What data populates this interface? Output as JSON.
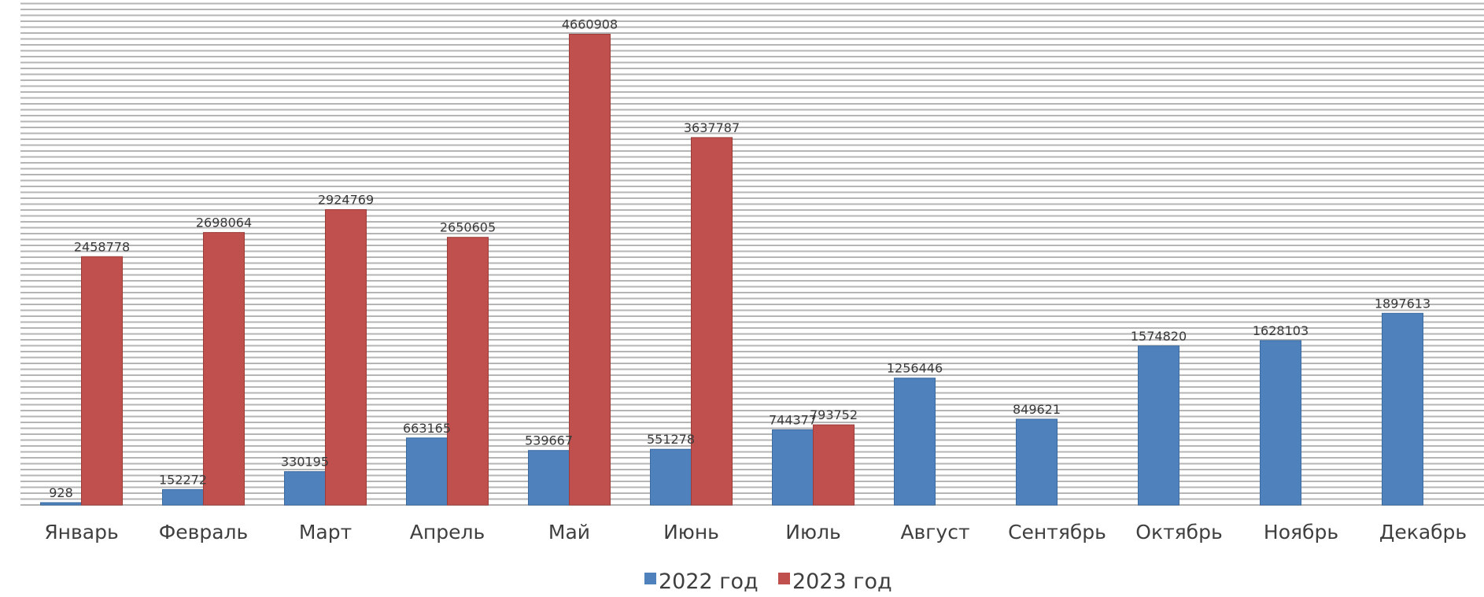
{
  "chart_data": {
    "type": "bar",
    "categories": [
      "Январь",
      "Февраль",
      "Март",
      "Апрель",
      "Май",
      "Июнь",
      "Июль",
      "Август",
      "Сентябрь",
      "Октябрь",
      "Ноябрь",
      "Декабрь"
    ],
    "series": [
      {
        "name": "2022 год",
        "color": "#4f81bd",
        "values": [
          928,
          152272,
          330195,
          663165,
          539667,
          551278,
          744377,
          1256446,
          849621,
          1574820,
          1628103,
          1897613
        ],
        "labels": [
          "928",
          "152272",
          "330195",
          "663165",
          "539667",
          "551278",
          "744377",
          "1256446",
          "849621",
          "1574820",
          "1628103",
          "1897613"
        ]
      },
      {
        "name": "2023 год",
        "color": "#c0504d",
        "values": [
          2458778,
          2698064,
          2924769,
          2650605,
          4660908,
          3637787,
          793752,
          null,
          null,
          null,
          null,
          null
        ],
        "labels": [
          "2458778",
          "2698064",
          "2924769",
          "2650605",
          "4660908",
          "3637787",
          "793752",
          "",
          "",
          "",
          "",
          ""
        ]
      }
    ],
    "ylim": [
      0,
      5000000
    ],
    "legend_position": "bottom",
    "gridlines": true
  }
}
